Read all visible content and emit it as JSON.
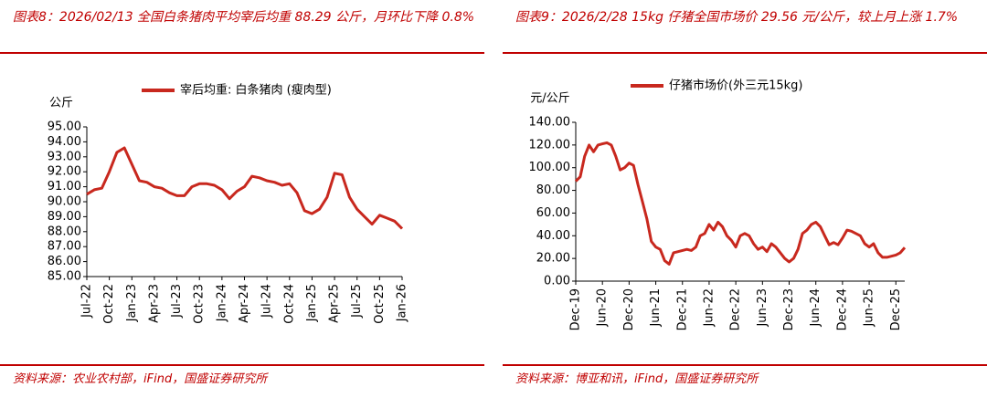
{
  "chart_data": [
    {
      "type": "line",
      "title": "图表8：2026/02/13 全国白条猪肉平均宰后均重 88.29 公斤，月环比下降 0.8%",
      "source": "资料来源：农业农村部，iFind，国盛证券研究所",
      "y_label": "公斤",
      "categories": [
        "Jul-22",
        null,
        null,
        "Oct-22",
        null,
        null,
        "Jan-23",
        null,
        null,
        "Apr-23",
        null,
        null,
        "Jul-23",
        null,
        null,
        "Oct-23",
        null,
        null,
        "Jan-24",
        null,
        null,
        "Apr-24",
        null,
        null,
        "Jul-24",
        null,
        null,
        "Oct-24",
        null,
        null,
        "Jan-25",
        null,
        null,
        "Apr-25",
        null,
        null,
        "Jul-25",
        null,
        null,
        "Oct-25",
        null,
        null,
        "Jan-26"
      ],
      "series": [
        {
          "name": "宰后均重: 白条猪肉 (瘦肉型)",
          "color": "#c8281e",
          "values": [
            90.5,
            90.8,
            90.9,
            92.0,
            93.3,
            93.6,
            92.5,
            91.4,
            91.3,
            91.0,
            90.9,
            90.6,
            90.4,
            90.4,
            91.0,
            91.2,
            91.2,
            91.1,
            90.8,
            90.2,
            90.7,
            91.0,
            91.7,
            91.6,
            91.4,
            91.3,
            91.1,
            91.2,
            90.6,
            89.4,
            89.2,
            89.5,
            90.3,
            91.9,
            91.8,
            90.3,
            89.5,
            89.0,
            88.5,
            89.1,
            88.9,
            88.7,
            88.2
          ]
        }
      ],
      "ylim": [
        85,
        95
      ],
      "yticks": [
        {
          "value": 85,
          "label": "85.00"
        },
        {
          "value": 86,
          "label": "86.00"
        },
        {
          "value": 87,
          "label": "87.00"
        },
        {
          "value": 88,
          "label": "88.00"
        },
        {
          "value": 89,
          "label": "89.00"
        },
        {
          "value": 90,
          "label": "90.00"
        },
        {
          "value": 91,
          "label": "91.00"
        },
        {
          "value": 92,
          "label": "92.00"
        },
        {
          "value": 93,
          "label": "93.00"
        },
        {
          "value": 94,
          "label": "94.00"
        },
        {
          "value": 95,
          "label": "95.00"
        }
      ],
      "grid": false
    },
    {
      "type": "line",
      "title": "图表9：2026/2/28 15kg 仔猪全国市场价 29.56 元/公斤，较上月上涨 1.7%",
      "source": "资料来源：博亚和讯，iFind，国盛证券研究所",
      "y_label": "元/公斤",
      "categories": [
        "Dec-19",
        null,
        null,
        null,
        null,
        null,
        "Jun-20",
        null,
        null,
        null,
        null,
        null,
        "Dec-20",
        null,
        null,
        null,
        null,
        null,
        "Jun-21",
        null,
        null,
        null,
        null,
        null,
        "Dec-21",
        null,
        null,
        null,
        null,
        null,
        "Jun-22",
        null,
        null,
        null,
        null,
        null,
        "Dec-22",
        null,
        null,
        null,
        null,
        null,
        "Jun-23",
        null,
        null,
        null,
        null,
        null,
        "Dec-23",
        null,
        null,
        null,
        null,
        null,
        "Jun-24",
        null,
        null,
        null,
        null,
        null,
        "Dec-24",
        null,
        null,
        null,
        null,
        null,
        "Jun-25",
        null,
        null,
        null,
        null,
        null,
        "Dec-25",
        null,
        null
      ],
      "series": [
        {
          "name": "仔猪市场价(外三元15kg)",
          "color": "#c8281e",
          "values": [
            88,
            92,
            110,
            120,
            114,
            120,
            121,
            122,
            120,
            110,
            98,
            100,
            104,
            102,
            85,
            70,
            55,
            35,
            30,
            28,
            18,
            15,
            25,
            26,
            27,
            28,
            27,
            30,
            40,
            42,
            50,
            45,
            52,
            48,
            40,
            36,
            30,
            40,
            42,
            40,
            33,
            28,
            30,
            26,
            33,
            30,
            25,
            20,
            17,
            20,
            28,
            42,
            45,
            50,
            52,
            48,
            40,
            32,
            34,
            32,
            38,
            45,
            44,
            42,
            40,
            33,
            30,
            33,
            25,
            21,
            21,
            22,
            23,
            25,
            29.56
          ]
        }
      ],
      "ylim": [
        0,
        140
      ],
      "yticks": [
        {
          "value": 0,
          "label": "0.00"
        },
        {
          "value": 20,
          "label": "20.00"
        },
        {
          "value": 40,
          "label": "40.00"
        },
        {
          "value": 60,
          "label": "60.00"
        },
        {
          "value": 80,
          "label": "80.00"
        },
        {
          "value": 100,
          "label": "100.00"
        },
        {
          "value": 120,
          "label": "120.00"
        },
        {
          "value": 140,
          "label": "140.00"
        }
      ],
      "grid": false
    }
  ]
}
